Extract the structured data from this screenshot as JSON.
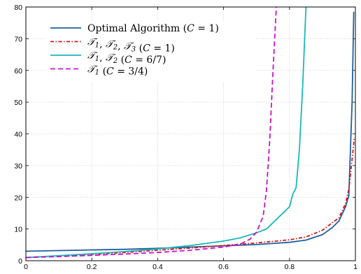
{
  "chart_data": {
    "type": "line",
    "title": "",
    "xlabel": "",
    "ylabel": "",
    "xlim": [
      0,
      1
    ],
    "ylim": [
      0,
      80
    ],
    "xticks": [
      "0",
      "0.2",
      "0.4",
      "0.6",
      "0.8",
      "1"
    ],
    "yticks": [
      "0",
      "10",
      "20",
      "30",
      "40",
      "50",
      "60",
      "70",
      "80"
    ],
    "grid": true,
    "legend_position": "top-left",
    "series": [
      {
        "name": "Optimal Algorithm (C = 1)",
        "color": "#1f5fa0",
        "style": "solid",
        "points": [
          [
            0.0,
            3.0
          ],
          [
            0.1,
            3.2
          ],
          [
            0.2,
            3.4
          ],
          [
            0.3,
            3.6
          ],
          [
            0.4,
            3.9
          ],
          [
            0.5,
            4.3
          ],
          [
            0.6,
            4.7
          ],
          [
            0.7,
            5.1
          ],
          [
            0.8,
            5.8
          ],
          [
            0.85,
            6.5
          ],
          [
            0.9,
            8.2
          ],
          [
            0.93,
            10.5
          ],
          [
            0.95,
            12.5
          ],
          [
            0.97,
            17.0
          ],
          [
            0.98,
            20.5
          ],
          [
            0.99,
            50.0
          ],
          [
            0.995,
            78.5
          ]
        ]
      },
      {
        "name": "T1, T2, T3 (C = 1)",
        "color": "#dd1111",
        "style": "dashdot",
        "points": [
          [
            0.0,
            1.0
          ],
          [
            0.1,
            1.5
          ],
          [
            0.2,
            2.0
          ],
          [
            0.3,
            2.6
          ],
          [
            0.4,
            3.3
          ],
          [
            0.5,
            4.0
          ],
          [
            0.6,
            4.8
          ],
          [
            0.7,
            5.6
          ],
          [
            0.8,
            6.6
          ],
          [
            0.85,
            7.5
          ],
          [
            0.9,
            9.6
          ],
          [
            0.93,
            12.0
          ],
          [
            0.95,
            13.5
          ],
          [
            0.97,
            18.0
          ],
          [
            0.98,
            22.5
          ],
          [
            0.99,
            32.0
          ],
          [
            0.997,
            39.0
          ]
        ]
      },
      {
        "name": "T1, T2 (C = 6/7)",
        "color": "#18b8b8",
        "style": "solid",
        "points": [
          [
            0.0,
            1.0
          ],
          [
            0.1,
            1.6
          ],
          [
            0.2,
            2.2
          ],
          [
            0.3,
            2.9
          ],
          [
            0.4,
            3.7
          ],
          [
            0.5,
            4.8
          ],
          [
            0.6,
            6.2
          ],
          [
            0.65,
            7.2
          ],
          [
            0.7,
            8.8
          ],
          [
            0.73,
            10.0
          ],
          [
            0.75,
            12.0
          ],
          [
            0.78,
            15.0
          ],
          [
            0.8,
            17.0
          ],
          [
            0.81,
            21.0
          ],
          [
            0.82,
            23.0
          ],
          [
            0.83,
            35.0
          ],
          [
            0.84,
            55.0
          ],
          [
            0.85,
            80.0
          ]
        ]
      },
      {
        "name": "T1 (C = 3/4)",
        "color": "#cc11cc",
        "style": "dashed",
        "points": [
          [
            0.0,
            1.0
          ],
          [
            0.1,
            1.3
          ],
          [
            0.2,
            1.7
          ],
          [
            0.3,
            2.1
          ],
          [
            0.4,
            2.6
          ],
          [
            0.5,
            3.3
          ],
          [
            0.6,
            4.3
          ],
          [
            0.65,
            5.2
          ],
          [
            0.68,
            6.8
          ],
          [
            0.7,
            9.0
          ],
          [
            0.72,
            14.0
          ],
          [
            0.73,
            22.0
          ],
          [
            0.74,
            38.0
          ],
          [
            0.75,
            60.0
          ],
          [
            0.76,
            80.0
          ]
        ]
      }
    ]
  }
}
